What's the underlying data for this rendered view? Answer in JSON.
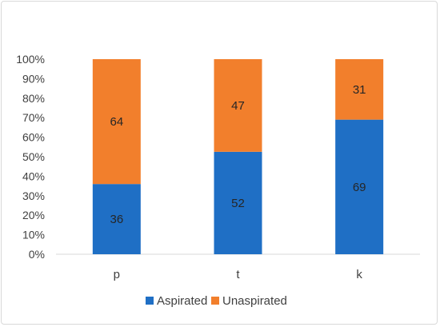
{
  "chart_data": {
    "type": "bar",
    "stacked": true,
    "percent_stacked": true,
    "categories": [
      "p",
      "t",
      "k"
    ],
    "series": [
      {
        "name": "Aspirated",
        "values": [
          36,
          52,
          69
        ],
        "color": "#1f6fc5"
      },
      {
        "name": "Unaspirated",
        "values": [
          64,
          47,
          31
        ],
        "color": "#f27f2c"
      }
    ],
    "y_ticks": [
      "0%",
      "10%",
      "20%",
      "30%",
      "40%",
      "50%",
      "60%",
      "70%",
      "80%",
      "90%",
      "100%"
    ],
    "ylim": [
      0,
      100
    ],
    "grid": false,
    "legend": "bottom",
    "data_labels": true
  }
}
